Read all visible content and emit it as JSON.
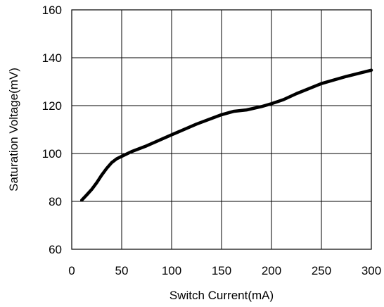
{
  "chart_data": {
    "type": "line",
    "title": "",
    "xlabel": "Switch Current(mA)",
    "ylabel": "Saturation Voltage(mV)",
    "xlim": [
      0,
      300
    ],
    "ylim": [
      60,
      160
    ],
    "xticks": [
      0,
      50,
      100,
      150,
      200,
      250,
      300
    ],
    "yticks": [
      60,
      80,
      100,
      120,
      140,
      160
    ],
    "grid": true,
    "legend": "none",
    "series": [
      {
        "color": "#000000",
        "x": [
          10,
          15,
          20,
          25,
          30,
          35,
          40,
          45,
          50,
          60,
          75,
          100,
          125,
          150,
          162,
          175,
          190,
          200,
          212,
          225,
          250,
          275,
          300
        ],
        "y": [
          80.5,
          82.7,
          85,
          87.8,
          91,
          93.8,
          96.2,
          97.8,
          98.8,
          100.8,
          103.2,
          107.8,
          112.3,
          116.2,
          117.6,
          118.2,
          119.6,
          120.8,
          122.5,
          125,
          129.2,
          132.2,
          134.8
        ]
      }
    ]
  }
}
